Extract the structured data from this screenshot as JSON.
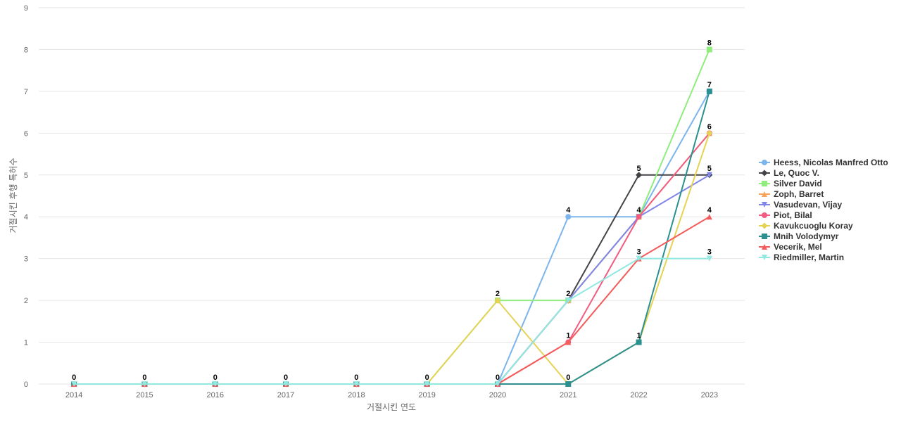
{
  "chart_data": {
    "type": "line",
    "title": "",
    "xlabel": "거절시킨 연도",
    "ylabel": "거절시킨 후행 특허수",
    "ylim": [
      0,
      9
    ],
    "y_ticks": [
      0,
      1,
      2,
      3,
      4,
      5,
      6,
      7,
      8,
      9
    ],
    "grid": true,
    "legend_position": "right",
    "categories": [
      "2014",
      "2015",
      "2016",
      "2017",
      "2018",
      "2019",
      "2020",
      "2021",
      "2022",
      "2023"
    ],
    "series": [
      {
        "name": "Heess, Nicolas Manfred Otto",
        "color": "#7cb5ec",
        "marker": "circle",
        "values": [
          0,
          0,
          0,
          0,
          0,
          0,
          0,
          4,
          4,
          7
        ]
      },
      {
        "name": "Le, Quoc V.",
        "color": "#434348",
        "marker": "diamond",
        "values": [
          0,
          0,
          0,
          0,
          0,
          0,
          0,
          2,
          5,
          5
        ]
      },
      {
        "name": "Silver David",
        "color": "#90ed7d",
        "marker": "square",
        "values": [
          0,
          0,
          0,
          0,
          0,
          0,
          2,
          2,
          4,
          8
        ]
      },
      {
        "name": "Zoph, Barret",
        "color": "#f7a35c",
        "marker": "triangle",
        "values": [
          0,
          0,
          0,
          0,
          0,
          0,
          0,
          2,
          4,
          6
        ]
      },
      {
        "name": "Vasudevan, Vijay",
        "color": "#8085e9",
        "marker": "triangle-down",
        "values": [
          0,
          0,
          0,
          0,
          0,
          0,
          0,
          2,
          4,
          5
        ]
      },
      {
        "name": "Piot, Bilal",
        "color": "#f15c80",
        "marker": "circle",
        "values": [
          0,
          0,
          0,
          0,
          0,
          0,
          0,
          1,
          4,
          6
        ]
      },
      {
        "name": "Kavukcuoglu Koray",
        "color": "#e4d354",
        "marker": "diamond",
        "values": [
          0,
          0,
          0,
          0,
          0,
          0,
          2,
          0,
          1,
          6
        ]
      },
      {
        "name": "Mnih Volodymyr",
        "color": "#2b908f",
        "marker": "square",
        "values": [
          0,
          0,
          0,
          0,
          0,
          0,
          0,
          0,
          1,
          7
        ]
      },
      {
        "name": "Vecerik, Mel",
        "color": "#f45b5b",
        "marker": "triangle",
        "values": [
          0,
          0,
          0,
          0,
          0,
          0,
          0,
          1,
          3,
          4
        ]
      },
      {
        "name": "Riedmiller, Martin",
        "color": "#91e8e1",
        "marker": "triangle-down",
        "values": [
          0,
          0,
          0,
          0,
          0,
          0,
          0,
          2,
          3,
          3
        ]
      }
    ],
    "data_labels": [
      {
        "x": "2014",
        "y": 0,
        "text": "0"
      },
      {
        "x": "2015",
        "y": 0,
        "text": "0"
      },
      {
        "x": "2016",
        "y": 0,
        "text": "0"
      },
      {
        "x": "2017",
        "y": 0,
        "text": "0"
      },
      {
        "x": "2018",
        "y": 0,
        "text": "0"
      },
      {
        "x": "2019",
        "y": 0,
        "text": "0"
      },
      {
        "x": "2020",
        "y": 0,
        "text": "0"
      },
      {
        "x": "2020",
        "y": 2,
        "text": "2"
      },
      {
        "x": "2021",
        "y": 4,
        "text": "4"
      },
      {
        "x": "2021",
        "y": 2,
        "text": "2"
      },
      {
        "x": "2021",
        "y": 1,
        "text": "1"
      },
      {
        "x": "2021",
        "y": 0,
        "text": "0"
      },
      {
        "x": "2022",
        "y": 5,
        "text": "5"
      },
      {
        "x": "2022",
        "y": 4,
        "text": "4"
      },
      {
        "x": "2022",
        "y": 3,
        "text": "3"
      },
      {
        "x": "2022",
        "y": 1,
        "text": "1"
      },
      {
        "x": "2023",
        "y": 8,
        "text": "8"
      },
      {
        "x": "2023",
        "y": 7,
        "text": "7"
      },
      {
        "x": "2023",
        "y": 6,
        "text": "6"
      },
      {
        "x": "2023",
        "y": 5,
        "text": "5"
      },
      {
        "x": "2023",
        "y": 4,
        "text": "4"
      },
      {
        "x": "2023",
        "y": 3,
        "text": "3"
      }
    ]
  }
}
